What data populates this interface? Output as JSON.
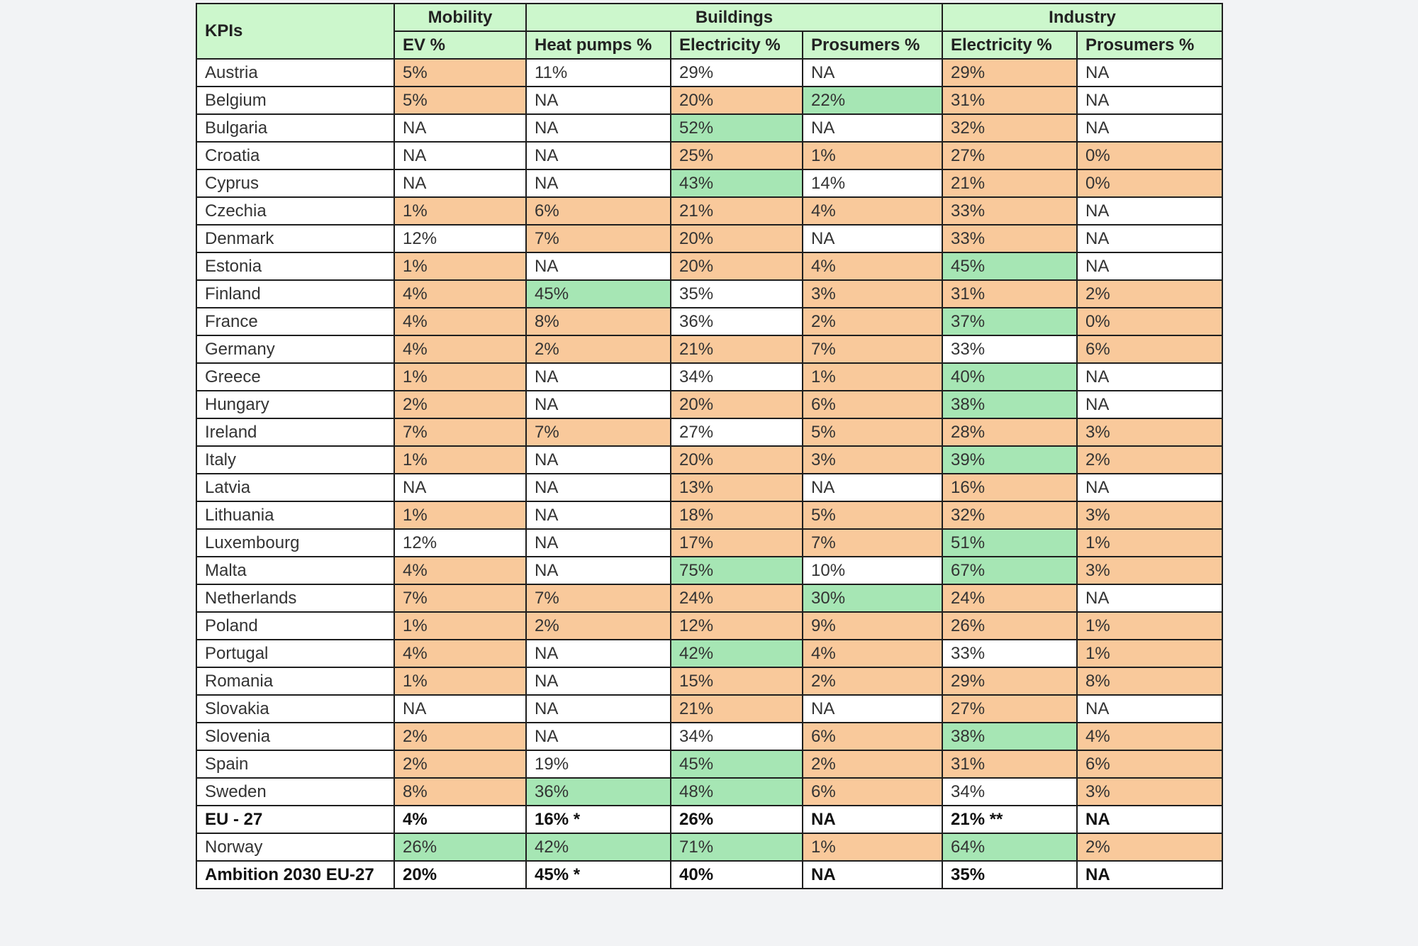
{
  "header": {
    "kpis": "KPIs",
    "groups": [
      "Mobility",
      "Buildings",
      "Industry"
    ],
    "columns": [
      "EV %",
      "Heat pumps %",
      "Electricity %",
      "Prosumers %",
      "Electricity %",
      "Prosumers %"
    ]
  },
  "colors": {
    "o": "#f9c99b",
    "g": "#a6e6b4",
    "w": "#ffffff",
    "header": "#ccf7cc"
  },
  "rows": [
    {
      "label": "Austria",
      "values": [
        "5%",
        "11%",
        "29%",
        "NA",
        "29%",
        "NA"
      ],
      "fill": "owwwow"
    },
    {
      "label": "Belgium",
      "values": [
        "5%",
        "NA",
        "20%",
        "22%",
        "31%",
        "NA"
      ],
      "fill": "owogow"
    },
    {
      "label": "Bulgaria",
      "values": [
        "NA",
        "NA",
        "52%",
        "NA",
        "32%",
        "NA"
      ],
      "fill": "wwgwow"
    },
    {
      "label": "Croatia",
      "values": [
        "NA",
        "NA",
        "25%",
        "1%",
        "27%",
        "0%"
      ],
      "fill": "wwoooo"
    },
    {
      "label": "Cyprus",
      "values": [
        "NA",
        "NA",
        "43%",
        "14%",
        "21%",
        "0%"
      ],
      "fill": "wwgwoo"
    },
    {
      "label": "Czechia",
      "values": [
        "1%",
        "6%",
        "21%",
        "4%",
        "33%",
        "NA"
      ],
      "fill": "ooooow"
    },
    {
      "label": "Denmark",
      "values": [
        "12%",
        "7%",
        "20%",
        "NA",
        "33%",
        "NA"
      ],
      "fill": "woowow"
    },
    {
      "label": "Estonia",
      "values": [
        "1%",
        "NA",
        "20%",
        "4%",
        "45%",
        "NA"
      ],
      "fill": "owoogw"
    },
    {
      "label": "Finland",
      "values": [
        "4%",
        "45%",
        "35%",
        "3%",
        "31%",
        "2%"
      ],
      "fill": "ogwooo"
    },
    {
      "label": "France",
      "values": [
        "4%",
        "8%",
        "36%",
        "2%",
        "37%",
        "0%"
      ],
      "fill": "oowogo"
    },
    {
      "label": "Germany",
      "values": [
        "4%",
        "2%",
        "21%",
        "7%",
        "33%",
        "6%"
      ],
      "fill": "oooowo"
    },
    {
      "label": "Greece",
      "values": [
        "1%",
        "NA",
        "34%",
        "1%",
        "40%",
        "NA"
      ],
      "fill": "owwogw"
    },
    {
      "label": "Hungary",
      "values": [
        "2%",
        "NA",
        "20%",
        "6%",
        "38%",
        "NA"
      ],
      "fill": "owoogw"
    },
    {
      "label": "Ireland",
      "values": [
        "7%",
        "7%",
        "27%",
        "5%",
        "28%",
        "3%"
      ],
      "fill": "oowooo"
    },
    {
      "label": "Italy",
      "values": [
        "1%",
        "NA",
        "20%",
        "3%",
        "39%",
        "2%"
      ],
      "fill": "owoogo"
    },
    {
      "label": "Latvia",
      "values": [
        "NA",
        "NA",
        "13%",
        "NA",
        "16%",
        "NA"
      ],
      "fill": "wwowow"
    },
    {
      "label": "Lithuania",
      "values": [
        "1%",
        "NA",
        "18%",
        "5%",
        "32%",
        "3%"
      ],
      "fill": "owoooo"
    },
    {
      "label": "Luxembourg",
      "values": [
        "12%",
        "NA",
        "17%",
        "7%",
        "51%",
        "1%"
      ],
      "fill": "wwoogo"
    },
    {
      "label": "Malta",
      "values": [
        "4%",
        "NA",
        "75%",
        "10%",
        "67%",
        "3%"
      ],
      "fill": "owgwgo"
    },
    {
      "label": "Netherlands",
      "values": [
        "7%",
        "7%",
        "24%",
        "30%",
        "24%",
        "NA"
      ],
      "fill": "ooogow"
    },
    {
      "label": "Poland",
      "values": [
        "1%",
        "2%",
        "12%",
        "9%",
        "26%",
        "1%"
      ],
      "fill": "oooooo"
    },
    {
      "label": "Portugal",
      "values": [
        "4%",
        "NA",
        "42%",
        "4%",
        "33%",
        "1%"
      ],
      "fill": "owgowo"
    },
    {
      "label": "Romania",
      "values": [
        "1%",
        "NA",
        "15%",
        "2%",
        "29%",
        "8%"
      ],
      "fill": "owoooo"
    },
    {
      "label": "Slovakia",
      "values": [
        "NA",
        "NA",
        "21%",
        "NA",
        "27%",
        "NA"
      ],
      "fill": "wwowow"
    },
    {
      "label": "Slovenia",
      "values": [
        "2%",
        "NA",
        "34%",
        "6%",
        "38%",
        "4%"
      ],
      "fill": "owwogo"
    },
    {
      "label": "Spain",
      "values": [
        "2%",
        "19%",
        "45%",
        "2%",
        "31%",
        "6%"
      ],
      "fill": "owgooo"
    },
    {
      "label": "Sweden",
      "values": [
        "8%",
        "36%",
        "48%",
        "6%",
        "34%",
        "3%"
      ],
      "fill": "oggowo"
    },
    {
      "label": "EU - 27",
      "values": [
        "4%",
        "16% *",
        "26%",
        "NA",
        "21% **",
        "NA"
      ],
      "fill": "wwwwww",
      "bold": true
    },
    {
      "label": "Norway",
      "values": [
        "26%",
        "42%",
        "71%",
        "1%",
        "64%",
        "2%"
      ],
      "fill": "gggogo"
    },
    {
      "label": "Ambition 2030 EU-27",
      "values": [
        "20%",
        "45% *",
        "40%",
        "NA",
        "35%",
        "NA"
      ],
      "fill": "wwwwww",
      "bold": true
    }
  ]
}
